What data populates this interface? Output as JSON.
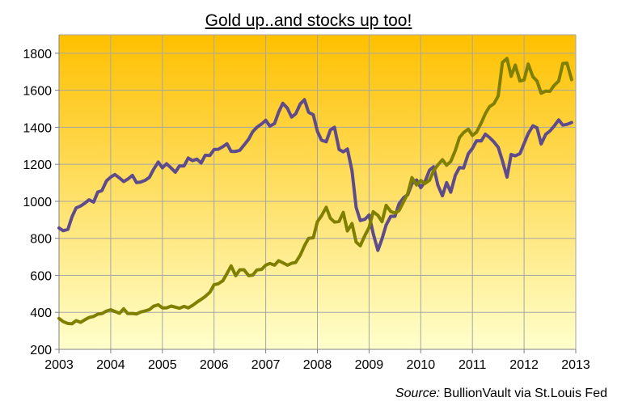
{
  "chart_data": {
    "type": "line",
    "title": "Gold up..and stocks up too!",
    "source_label": "Source:",
    "source_text": "BullionVault via St.Louis Fed",
    "x_ticks": [
      "2003",
      "2004",
      "2005",
      "2006",
      "2007",
      "2008",
      "2009",
      "2010",
      "2011",
      "2012",
      "2013"
    ],
    "y_ticks": [
      "200",
      "400",
      "600",
      "800",
      "1000",
      "1200",
      "1400",
      "1600",
      "1800"
    ],
    "xlim": [
      2003,
      2013
    ],
    "ylim": [
      200,
      1900
    ],
    "grid": true,
    "background": {
      "top": "#FFC000",
      "bottom": "#FFFFCC"
    },
    "series": [
      {
        "color": "#5E4B8C",
        "x": [
          2003.0,
          2003.08,
          2003.17,
          2003.25,
          2003.33,
          2003.42,
          2003.5,
          2003.58,
          2003.67,
          2003.75,
          2003.83,
          2003.92,
          2004.0,
          2004.08,
          2004.17,
          2004.25,
          2004.33,
          2004.42,
          2004.5,
          2004.58,
          2004.67,
          2004.75,
          2004.83,
          2004.92,
          2005.0,
          2005.08,
          2005.17,
          2005.25,
          2005.33,
          2005.42,
          2005.5,
          2005.58,
          2005.67,
          2005.75,
          2005.83,
          2005.92,
          2006.0,
          2006.08,
          2006.17,
          2006.25,
          2006.33,
          2006.42,
          2006.5,
          2006.58,
          2006.67,
          2006.75,
          2006.83,
          2006.92,
          2007.0,
          2007.08,
          2007.17,
          2007.25,
          2007.33,
          2007.42,
          2007.5,
          2007.58,
          2007.67,
          2007.75,
          2007.83,
          2007.92,
          2008.0,
          2008.08,
          2008.17,
          2008.25,
          2008.33,
          2008.42,
          2008.5,
          2008.58,
          2008.67,
          2008.75,
          2008.83,
          2008.92,
          2009.0,
          2009.08,
          2009.17,
          2009.25,
          2009.33,
          2009.42,
          2009.5,
          2009.58,
          2009.67,
          2009.75,
          2009.83,
          2009.92,
          2010.0,
          2010.08,
          2010.17,
          2010.25,
          2010.33,
          2010.42,
          2010.5,
          2010.58,
          2010.67,
          2010.75,
          2010.83,
          2010.92,
          2011.0,
          2011.08,
          2011.17,
          2011.25,
          2011.33,
          2011.42,
          2011.5,
          2011.58,
          2011.67,
          2011.75,
          2011.83,
          2011.92,
          2012.0,
          2012.08,
          2012.17,
          2012.25,
          2012.33,
          2012.42,
          2012.5,
          2012.58,
          2012.67,
          2012.75,
          2012.83,
          2012.92
        ],
        "values": [
          856,
          841,
          848,
          916,
          964,
          975,
          990,
          1008,
          996,
          1050,
          1058,
          1111,
          1131,
          1145,
          1126,
          1107,
          1120,
          1140,
          1101,
          1104,
          1114,
          1130,
          1173,
          1212,
          1181,
          1203,
          1180,
          1157,
          1191,
          1191,
          1234,
          1220,
          1228,
          1207,
          1249,
          1248,
          1280,
          1281,
          1295,
          1311,
          1270,
          1270,
          1276,
          1304,
          1336,
          1377,
          1400,
          1418,
          1438,
          1406,
          1420,
          1482,
          1530,
          1503,
          1455,
          1473,
          1527,
          1549,
          1481,
          1468,
          1378,
          1330,
          1322,
          1385,
          1400,
          1280,
          1267,
          1283,
          1165,
          968,
          896,
          903,
          926,
          826,
          735,
          797,
          872,
          919,
          919,
          987,
          1020,
          1036,
          1096,
          1115,
          1074,
          1104,
          1169,
          1187,
          1089,
          1030,
          1101,
          1049,
          1141,
          1183,
          1180,
          1257,
          1286,
          1327,
          1326,
          1363,
          1345,
          1320,
          1292,
          1219,
          1131,
          1253,
          1246,
          1258,
          1312,
          1366,
          1408,
          1397,
          1310,
          1362,
          1380,
          1406,
          1440,
          1412,
          1416,
          1426
        ]
      },
      {
        "color": "#7F7F00",
        "x": [
          2003.0,
          2003.08,
          2003.17,
          2003.25,
          2003.33,
          2003.42,
          2003.5,
          2003.58,
          2003.67,
          2003.75,
          2003.83,
          2003.92,
          2004.0,
          2004.08,
          2004.17,
          2004.25,
          2004.33,
          2004.42,
          2004.5,
          2004.58,
          2004.67,
          2004.75,
          2004.83,
          2004.92,
          2005.0,
          2005.08,
          2005.17,
          2005.25,
          2005.33,
          2005.42,
          2005.5,
          2005.58,
          2005.67,
          2005.75,
          2005.83,
          2005.92,
          2006.0,
          2006.08,
          2006.17,
          2006.25,
          2006.33,
          2006.42,
          2006.5,
          2006.58,
          2006.67,
          2006.75,
          2006.83,
          2006.92,
          2007.0,
          2007.08,
          2007.17,
          2007.25,
          2007.33,
          2007.42,
          2007.5,
          2007.58,
          2007.67,
          2007.75,
          2007.83,
          2007.92,
          2008.0,
          2008.08,
          2008.17,
          2008.25,
          2008.33,
          2008.42,
          2008.5,
          2008.58,
          2008.67,
          2008.75,
          2008.83,
          2008.92,
          2009.0,
          2009.08,
          2009.17,
          2009.25,
          2009.33,
          2009.42,
          2009.5,
          2009.58,
          2009.67,
          2009.75,
          2009.83,
          2009.92,
          2010.0,
          2010.08,
          2010.17,
          2010.25,
          2010.33,
          2010.42,
          2010.5,
          2010.58,
          2010.67,
          2010.75,
          2010.83,
          2010.92,
          2011.0,
          2011.08,
          2011.17,
          2011.25,
          2011.33,
          2011.42,
          2011.5,
          2011.58,
          2011.67,
          2011.75,
          2011.83,
          2011.92,
          2012.0,
          2012.08,
          2012.17,
          2012.25,
          2012.33,
          2012.42,
          2012.5,
          2012.58,
          2012.67,
          2012.75,
          2012.83,
          2012.92
        ],
        "values": [
          367,
          350,
          340,
          338,
          355,
          346,
          360,
          372,
          378,
          390,
          393,
          407,
          414,
          405,
          395,
          419,
          393,
          394,
          391,
          402,
          408,
          415,
          433,
          441,
          424,
          424,
          434,
          428,
          422,
          432,
          424,
          437,
          455,
          470,
          486,
          509,
          549,
          554,
          571,
          610,
          651,
          598,
          630,
          630,
          598,
          601,
          629,
          632,
          655,
          664,
          655,
          679,
          668,
          655,
          665,
          670,
          710,
          760,
          800,
          803,
          890,
          922,
          968,
          909,
          888,
          891,
          940,
          840,
          880,
          780,
          760,
          816,
          858,
          944,
          924,
          890,
          978,
          945,
          936,
          950,
          999,
          1043,
          1128,
          1088,
          1112,
          1096,
          1114,
          1166,
          1196,
          1225,
          1195,
          1215,
          1275,
          1345,
          1371,
          1390,
          1356,
          1374,
          1423,
          1474,
          1511,
          1528,
          1570,
          1750,
          1772,
          1676,
          1736,
          1650,
          1656,
          1742,
          1673,
          1650,
          1584,
          1596,
          1594,
          1626,
          1650,
          1745,
          1747,
          1658
        ]
      }
    ]
  }
}
